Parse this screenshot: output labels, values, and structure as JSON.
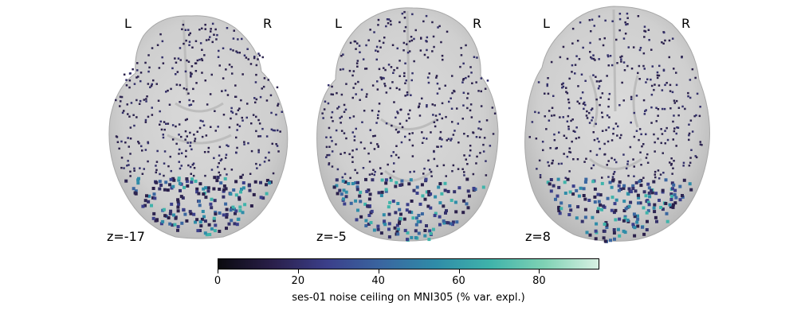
{
  "panels": [
    {
      "left_label": "L",
      "right_label": "R",
      "slice_label": "z=-17"
    },
    {
      "left_label": "L",
      "right_label": "R",
      "slice_label": "z=-5"
    },
    {
      "left_label": "L",
      "right_label": "R",
      "slice_label": "z=8"
    }
  ],
  "colorbar": {
    "title": "ses-01 noise ceiling on MNI305 (% var. expl.)",
    "range": [
      0,
      95
    ],
    "ticks": [
      {
        "value": 0,
        "label": "0"
      },
      {
        "value": 20,
        "label": "20"
      },
      {
        "value": 40,
        "label": "40"
      },
      {
        "value": 60,
        "label": "60"
      },
      {
        "value": 80,
        "label": "80"
      }
    ],
    "colors": [
      "#0a0a0f",
      "#2a1f4a",
      "#3b3f8a",
      "#3a66a0",
      "#2f8ca8",
      "#3fb3aa",
      "#7fd2b4",
      "#d8f1e3"
    ]
  }
}
